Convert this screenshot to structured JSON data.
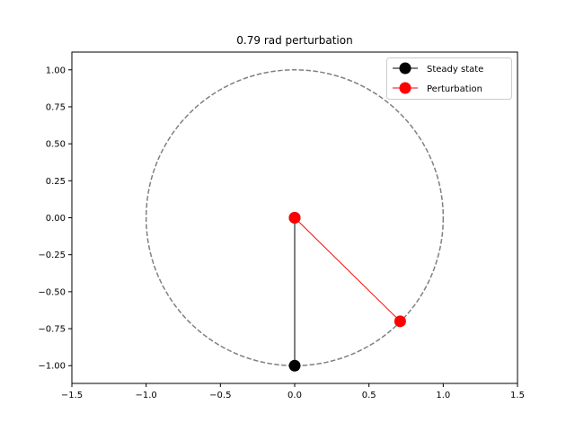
{
  "chart_data": {
    "type": "line",
    "title": "0.79 rad perturbation",
    "xlabel": "",
    "ylabel": "",
    "xlim": [
      -1.5,
      1.5
    ],
    "ylim": [
      -1.12,
      1.12
    ],
    "x_ticks": [
      -1.5,
      -1.0,
      -0.5,
      0.0,
      0.5,
      1.0,
      1.5
    ],
    "x_tick_labels": [
      "−1.5",
      "−1.0",
      "−0.5",
      "0.0",
      "0.5",
      "1.0",
      "1.5"
    ],
    "y_ticks": [
      1.0,
      0.75,
      0.5,
      0.25,
      0.0,
      -0.25,
      -0.5,
      -0.75,
      -1.0
    ],
    "y_tick_labels": [
      "1.00",
      "0.75",
      "0.50",
      "0.25",
      "0.00",
      "−0.25",
      "−0.50",
      "−0.75",
      "−1.00"
    ],
    "grid": false,
    "legend_position": "top-right",
    "reference_circle": {
      "center": [
        0,
        0
      ],
      "radius": 1.0,
      "style": "dashed",
      "color": "#808080"
    },
    "series": [
      {
        "name": "Steady state",
        "color": "#000000",
        "marker": "circle",
        "points": [
          [
            0.0,
            0.0
          ],
          [
            0.0,
            -1.0
          ]
        ]
      },
      {
        "name": "Perturbation",
        "color": "#ff0000",
        "marker": "circle",
        "points": [
          [
            0.0,
            0.0
          ],
          [
            0.71,
            -0.7
          ]
        ]
      }
    ]
  }
}
